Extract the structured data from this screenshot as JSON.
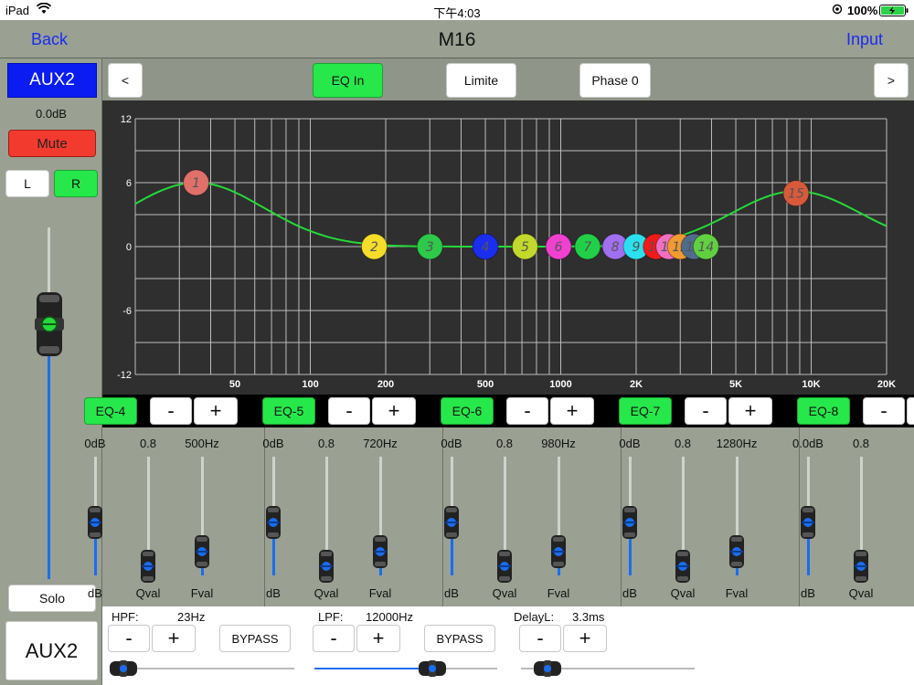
{
  "status": {
    "device": "iPad",
    "time": "下午4:03",
    "battery": "100%"
  },
  "nav": {
    "back": "Back",
    "title": "M16",
    "input": "Input"
  },
  "channel": {
    "name": "AUX2",
    "level": "0.0dB",
    "mute": "Mute",
    "left": "L",
    "right": "R",
    "solo": "Solo",
    "footer_name": "AUX2"
  },
  "toolbar": {
    "prev": "<",
    "eq_in": "EQ In",
    "limite": "Limite",
    "phase": "Phase 0",
    "next": ">"
  },
  "graph": {
    "y_ticks": [
      "12",
      "6",
      "0",
      "-6",
      "-12"
    ],
    "x_ticks": [
      "50",
      "100",
      "200",
      "500",
      "1000",
      "2K",
      "5K",
      "10K",
      "20K"
    ],
    "nodes": [
      "1",
      "2",
      "3",
      "4",
      "5",
      "6",
      "7",
      "8",
      "9",
      "10",
      "11",
      "12",
      "13",
      "14",
      "15"
    ],
    "node_colors": [
      "#e0706a",
      "#f5dd2a",
      "#2ec84a",
      "#1a2ef0",
      "#c2d82c",
      "#f040d0",
      "#22d048",
      "#a070f0",
      "#2ce0ee",
      "#f01a1a",
      "#f070c0",
      "#f09a30",
      "#506c8c",
      "#60d040",
      "#d85a3a"
    ]
  },
  "eq_bands": [
    {
      "name": "EQ-4",
      "minus": "-",
      "plus": "+",
      "db": "0dB",
      "q": "0.8",
      "freq": "500Hz",
      "db_label": "dB",
      "q_label": "Qval",
      "f_label": "Fval"
    },
    {
      "name": "EQ-5",
      "minus": "-",
      "plus": "+",
      "db": "0dB",
      "q": "0.8",
      "freq": "720Hz",
      "db_label": "dB",
      "q_label": "Qval",
      "f_label": "Fval"
    },
    {
      "name": "EQ-6",
      "minus": "-",
      "plus": "+",
      "db": "0dB",
      "q": "0.8",
      "freq": "980Hz",
      "db_label": "dB",
      "q_label": "Qval",
      "f_label": "Fval"
    },
    {
      "name": "EQ-7",
      "minus": "-",
      "plus": "+",
      "db": "0dB",
      "q": "0.8",
      "freq": "1280Hz",
      "db_label": "dB",
      "q_label": "Qval",
      "f_label": "Fval"
    },
    {
      "name": "EQ-8",
      "minus": "-",
      "plus": "+",
      "db": "0.0dB",
      "q": "0.8",
      "freq": "",
      "db_label": "dB",
      "q_label": "Qval",
      "f_label": ""
    }
  ],
  "filters": {
    "hpf_label": "HPF:",
    "hpf_value": "23Hz",
    "lpf_label": "LPF:",
    "lpf_value": "12000Hz",
    "delay_label": "DelayL:",
    "delay_value": "3.3ms",
    "minus": "-",
    "plus": "+",
    "bypass": "BYPASS"
  }
}
